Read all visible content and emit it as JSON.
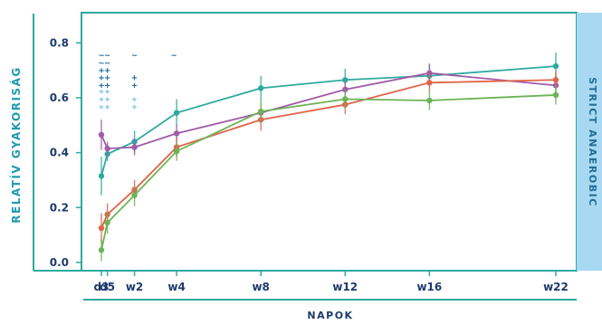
{
  "chart_data": {
    "type": "line",
    "ylabel": "RELATÍV GYAKORISÁG",
    "xlabel": "NAPOK",
    "band_label": "STRICT ANAEROBIC",
    "ylim": [
      -0.03,
      0.91
    ],
    "yticks": [
      "0.0",
      "0.2",
      "0.4",
      "0.6",
      "0.8"
    ],
    "categories": [
      "d3",
      "d5",
      "w2",
      "w4",
      "w8",
      "w12",
      "w16",
      "w22"
    ],
    "x_days": [
      3,
      5,
      14,
      28,
      56,
      84,
      112,
      154
    ],
    "series": [
      {
        "color": "#2eaaa0",
        "values": [
          0.315,
          0.395,
          0.44,
          0.545,
          0.635,
          0.665,
          0.68,
          0.715
        ],
        "err": [
          0.07,
          0.025,
          0.04,
          0.05,
          0.045,
          0.04,
          0.04,
          0.05
        ]
      },
      {
        "color": "#a15ba8",
        "values": [
          0.465,
          0.415,
          0.42,
          0.47,
          0.545,
          0.63,
          0.69,
          0.645
        ],
        "err": [
          0.055,
          0.025,
          0.03,
          0.03,
          0.035,
          0.03,
          0.035,
          0.035
        ]
      },
      {
        "color": "#e0644a",
        "values": [
          0.125,
          0.175,
          0.265,
          0.42,
          0.52,
          0.575,
          0.655,
          0.665
        ],
        "err": [
          0.055,
          0.04,
          0.035,
          0.035,
          0.04,
          0.035,
          0.035,
          0.03
        ]
      },
      {
        "color": "#6db356",
        "values": [
          0.045,
          0.145,
          0.245,
          0.405,
          0.55,
          0.595,
          0.59,
          0.61
        ],
        "err": [
          0.04,
          0.04,
          0.04,
          0.035,
          0.045,
          0.035,
          0.035,
          0.035
        ]
      }
    ],
    "significance": {
      "rows": [
        {
          "symbol": "~",
          "color": "#1f6fa0",
          "marks": [
            "~",
            "~",
            "~",
            "~",
            "",
            "",
            "",
            ""
          ]
        },
        {
          "symbol": "~",
          "color": "#1f6fa0",
          "marks": [
            "~",
            "~",
            "",
            "",
            "",
            "",
            "",
            ""
          ]
        },
        {
          "symbol": "+",
          "color": "#1f6fa0",
          "marks": [
            "+",
            "+",
            "",
            "",
            "",
            "",
            "",
            ""
          ]
        },
        {
          "symbol": "+",
          "color": "#1f6fa0",
          "marks": [
            "+",
            "+",
            "+",
            "",
            "",
            "",
            "",
            ""
          ]
        },
        {
          "symbol": "+",
          "color": "#1f6fa0",
          "marks": [
            "+",
            "+",
            "+",
            "",
            "",
            "",
            "",
            ""
          ]
        },
        {
          "symbol": "*",
          "color": "#7cc7d6",
          "marks": [
            "*",
            "*",
            "",
            "",
            "",
            "",
            "",
            ""
          ]
        },
        {
          "symbol": "*",
          "color": "#7cc7d6",
          "marks": [
            "*",
            "*",
            "*",
            "",
            "",
            "",
            "",
            ""
          ]
        },
        {
          "symbol": "*",
          "color": "#7cc7d6",
          "marks": [
            "*",
            "*",
            "*",
            "",
            "",
            "",
            "",
            ""
          ]
        }
      ]
    },
    "colors": {
      "frame": "#2eaaa0",
      "band": "#a9d9f2",
      "axis_text": "#1f3a6e",
      "ylabel_text": "#1f9bb0"
    }
  }
}
